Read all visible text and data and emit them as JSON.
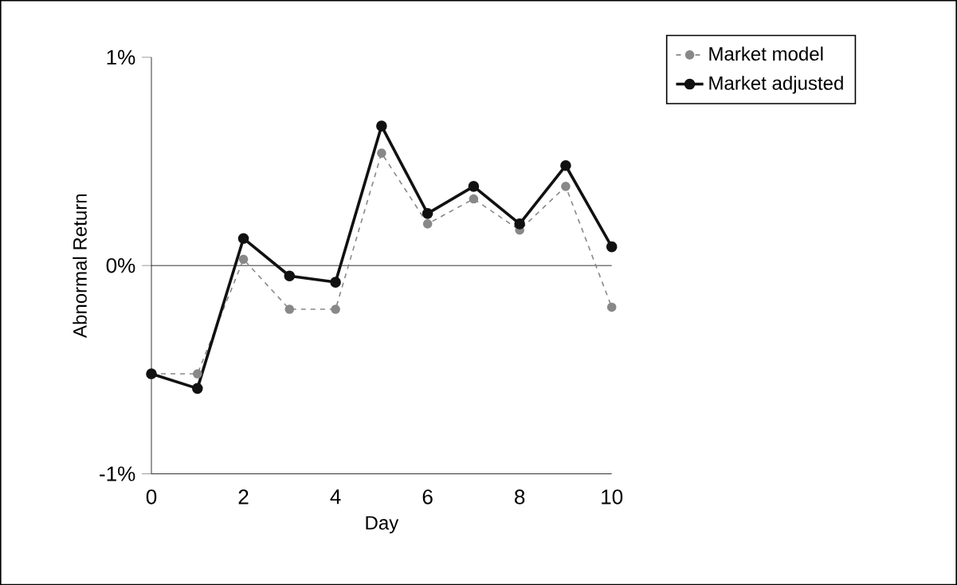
{
  "chart_data": {
    "type": "line",
    "xlabel": "Day",
    "ylabel": "Abnormal Return",
    "x": [
      0,
      1,
      2,
      3,
      4,
      5,
      6,
      7,
      8,
      9,
      10
    ],
    "series": [
      {
        "name": "Market model",
        "color": "#888888",
        "line_style": "dashed",
        "values": [
          -0.52,
          -0.52,
          0.03,
          -0.21,
          -0.21,
          0.54,
          0.2,
          0.32,
          0.17,
          0.38,
          -0.2
        ]
      },
      {
        "name": "Market adjusted",
        "color": "#111111",
        "line_style": "solid",
        "values": [
          -0.52,
          -0.59,
          0.13,
          -0.05,
          -0.08,
          0.67,
          0.25,
          0.38,
          0.2,
          0.48,
          0.09
        ]
      }
    ],
    "xlim": [
      0,
      10
    ],
    "xticks": [
      0,
      2,
      4,
      6,
      8,
      10
    ],
    "ylim": [
      -1,
      1
    ],
    "yticks": [
      {
        "value": -1,
        "label": "-1%"
      },
      {
        "value": 0,
        "label": "0%"
      },
      {
        "value": 1,
        "label": "1%"
      }
    ],
    "ref_lines": [
      {
        "axis": "y",
        "value": 0
      }
    ],
    "marker": "circle",
    "grid": false,
    "legend": "top right"
  }
}
